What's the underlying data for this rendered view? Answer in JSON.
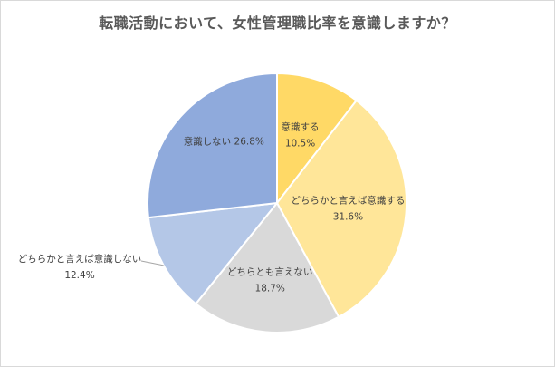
{
  "chart_data": {
    "type": "pie",
    "title": "転職活動において、女性管理職比率を意識しますか？",
    "slices": [
      {
        "label": "意識する",
        "value": 10.5,
        "value_text": "10.5%",
        "color": "#FFD966"
      },
      {
        "label": "どちらかと言えば意識する",
        "value": 31.6,
        "value_text": "31.6%",
        "color": "#FFE699"
      },
      {
        "label": "どちらとも言えない",
        "value": 18.7,
        "value_text": "18.7%",
        "color": "#D9D9D9"
      },
      {
        "label": "どちらかと言えば意識しない",
        "value": 12.4,
        "value_text": "12.4%",
        "color": "#B4C7E7"
      },
      {
        "label": "意識しない",
        "value": 26.8,
        "value_text": "26.8%",
        "color": "#8FAADC"
      }
    ],
    "start_angle": "12 o'clock",
    "direction": "clockwise",
    "legend": "none"
  }
}
